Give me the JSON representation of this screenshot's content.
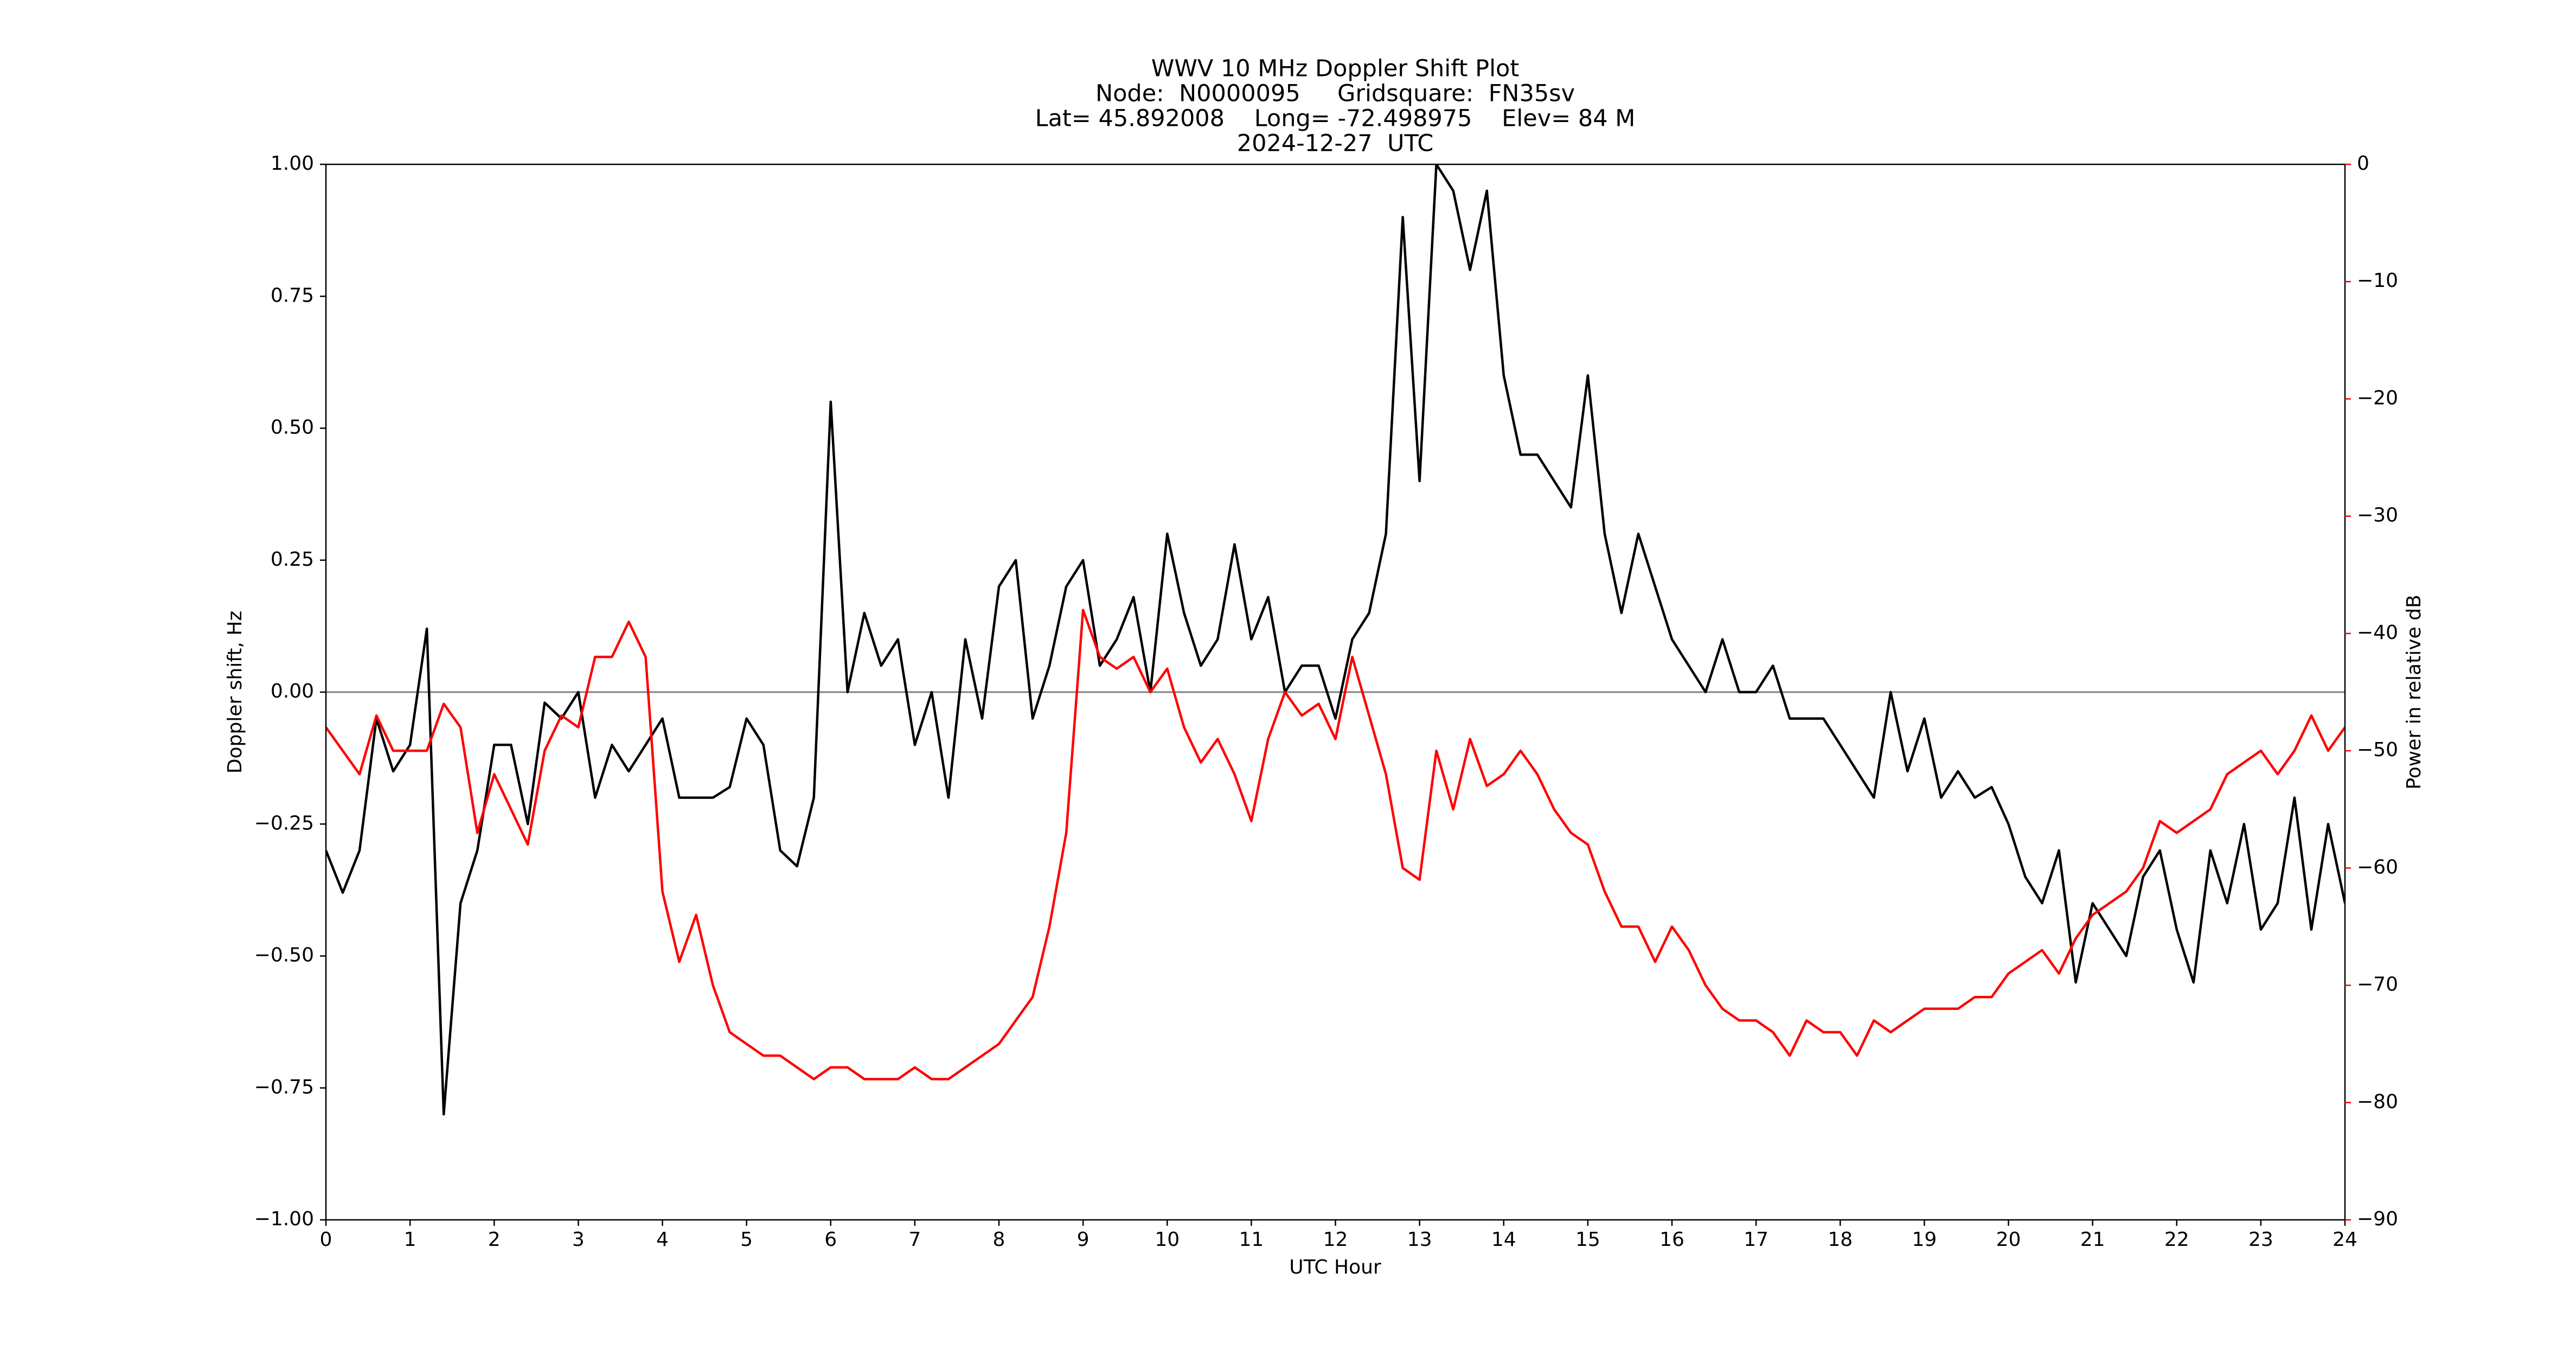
{
  "chart_data": {
    "type": "line",
    "title": [
      "WWV 10 MHz Doppler Shift Plot",
      "Node:  N0000095     Gridsquare:  FN35sv",
      "Lat= 45.892008    Long= -72.498975    Elev= 84 M",
      "2024-12-27  UTC"
    ],
    "xlabel": "UTC Hour",
    "ylabel": "Doppler shift, Hz",
    "y2label": "Power in relative dB",
    "x": [
      0,
      0.2,
      0.4,
      0.6,
      0.8,
      1,
      1.2,
      1.4,
      1.6,
      1.8,
      2,
      2.2,
      2.4,
      2.6,
      2.8,
      3,
      3.2,
      3.4,
      3.6,
      3.8,
      4,
      4.2,
      4.4,
      4.6,
      4.8,
      5,
      5.2,
      5.4,
      5.6,
      5.8,
      6,
      6.2,
      6.4,
      6.6,
      6.8,
      7,
      7.2,
      7.4,
      7.6,
      7.8,
      8,
      8.2,
      8.4,
      8.6,
      8.8,
      9,
      9.2,
      9.4,
      9.6,
      9.8,
      10,
      10.2,
      10.4,
      10.6,
      10.8,
      11,
      11.2,
      11.4,
      11.6,
      11.8,
      12,
      12.2,
      12.4,
      12.6,
      12.8,
      13,
      13.2,
      13.4,
      13.6,
      13.8,
      14,
      14.2,
      14.4,
      14.6,
      14.8,
      15,
      15.2,
      15.4,
      15.6,
      15.8,
      16,
      16.2,
      16.4,
      16.6,
      16.8,
      17,
      17.2,
      17.4,
      17.6,
      17.8,
      18,
      18.2,
      18.4,
      18.6,
      18.8,
      19,
      19.2,
      19.4,
      19.6,
      19.8,
      20,
      20.2,
      20.4,
      20.6,
      20.8,
      21,
      21.2,
      21.4,
      21.6,
      21.8,
      22,
      22.2,
      22.4,
      22.6,
      22.8,
      23,
      23.2,
      23.4,
      23.6,
      23.8,
      24
    ],
    "series": [
      {
        "name": "Doppler shift",
        "color": "#000000",
        "axis": "y",
        "values": [
          -0.3,
          -0.38,
          -0.3,
          -0.05,
          -0.15,
          -0.1,
          0.12,
          -0.8,
          -0.4,
          -0.3,
          -0.1,
          -0.1,
          -0.25,
          -0.02,
          -0.05,
          0.0,
          -0.2,
          -0.1,
          -0.15,
          -0.1,
          -0.05,
          -0.2,
          -0.2,
          -0.2,
          -0.18,
          -0.05,
          -0.1,
          -0.3,
          -0.33,
          -0.2,
          0.55,
          0.0,
          0.15,
          0.05,
          0.1,
          -0.1,
          0.0,
          -0.2,
          0.1,
          -0.05,
          0.2,
          0.25,
          -0.05,
          0.05,
          0.2,
          0.25,
          0.05,
          0.1,
          0.18,
          0.0,
          0.3,
          0.15,
          0.05,
          0.1,
          0.28,
          0.1,
          0.18,
          0.0,
          0.05,
          0.05,
          -0.05,
          0.1,
          0.15,
          0.3,
          0.9,
          0.4,
          1.0,
          0.95,
          0.8,
          0.95,
          0.6,
          0.45,
          0.45,
          0.4,
          0.35,
          0.6,
          0.3,
          0.15,
          0.3,
          0.2,
          0.1,
          0.05,
          0.0,
          0.1,
          0.0,
          0.0,
          0.05,
          -0.05,
          -0.05,
          -0.05,
          -0.1,
          -0.15,
          -0.2,
          0.0,
          -0.15,
          -0.05,
          -0.2,
          -0.15,
          -0.2,
          -0.18,
          -0.25,
          -0.35,
          -0.4,
          -0.3,
          -0.55,
          -0.4,
          -0.45,
          -0.5,
          -0.35,
          -0.3,
          -0.45,
          -0.55,
          -0.3,
          -0.4,
          -0.25,
          -0.45,
          -0.4,
          -0.2,
          -0.45,
          -0.25,
          -0.4
        ]
      },
      {
        "name": "Power",
        "color": "#ff0000",
        "axis": "y2",
        "values": [
          -48,
          -50,
          -52,
          -47,
          -50,
          -50,
          -50,
          -46,
          -48,
          -57,
          -52,
          -55,
          -58,
          -50,
          -47,
          -48,
          -42,
          -42,
          -39,
          -42,
          -62,
          -68,
          -64,
          -70,
          -74,
          -75,
          -76,
          -76,
          -77,
          -78,
          -77,
          -77,
          -78,
          -78,
          -78,
          -77,
          -78,
          -78,
          -77,
          -76,
          -75,
          -73,
          -71,
          -65,
          -57,
          -38,
          -42,
          -43,
          -42,
          -45,
          -43,
          -48,
          -51,
          -49,
          -52,
          -56,
          -49,
          -45,
          -47,
          -46,
          -49,
          -42,
          -47,
          -52,
          -60,
          -61,
          -50,
          -55,
          -49,
          -53,
          -52,
          -50,
          -52,
          -55,
          -57,
          -58,
          -62,
          -65,
          -65,
          -68,
          -65,
          -67,
          -70,
          -72,
          -73,
          -73,
          -74,
          -76,
          -73,
          -74,
          -74,
          -76,
          -73,
          -74,
          -73,
          -72,
          -72,
          -72,
          -71,
          -71,
          -69,
          -68,
          -67,
          -69,
          -66,
          -64,
          -63,
          -62,
          -60,
          -56,
          -57,
          -56,
          -55,
          -52,
          -51,
          -50,
          -52,
          -50,
          -47,
          -50,
          -48
        ]
      }
    ],
    "xlim": [
      0,
      24
    ],
    "xticks": [
      0,
      1,
      2,
      3,
      4,
      5,
      6,
      7,
      8,
      9,
      10,
      11,
      12,
      13,
      14,
      15,
      16,
      17,
      18,
      19,
      20,
      21,
      22,
      23,
      24
    ],
    "ylim": [
      -1,
      1
    ],
    "yticks": [
      {
        "value": -1,
        "label": "−1.00"
      },
      {
        "value": -0.75,
        "label": "−0.75"
      },
      {
        "value": -0.5,
        "label": "−0.50"
      },
      {
        "value": -0.25,
        "label": "−0.25"
      },
      {
        "value": 0,
        "label": "0.00"
      },
      {
        "value": 0.25,
        "label": "0.25"
      },
      {
        "value": 0.5,
        "label": "0.50"
      },
      {
        "value": 0.75,
        "label": "0.75"
      },
      {
        "value": 1,
        "label": "1.00"
      }
    ],
    "y2lim": [
      -90,
      0
    ],
    "y2ticks": [
      {
        "value": -90,
        "label": "−90"
      },
      {
        "value": -80,
        "label": "−80"
      },
      {
        "value": -70,
        "label": "−70"
      },
      {
        "value": -60,
        "label": "−60"
      },
      {
        "value": -50,
        "label": "−50"
      },
      {
        "value": -40,
        "label": "−40"
      },
      {
        "value": -30,
        "label": "−30"
      },
      {
        "value": -20,
        "label": "−20"
      },
      {
        "value": -10,
        "label": "−10"
      },
      0
    ],
    "y2color": "#ff0000",
    "hline": 0
  }
}
